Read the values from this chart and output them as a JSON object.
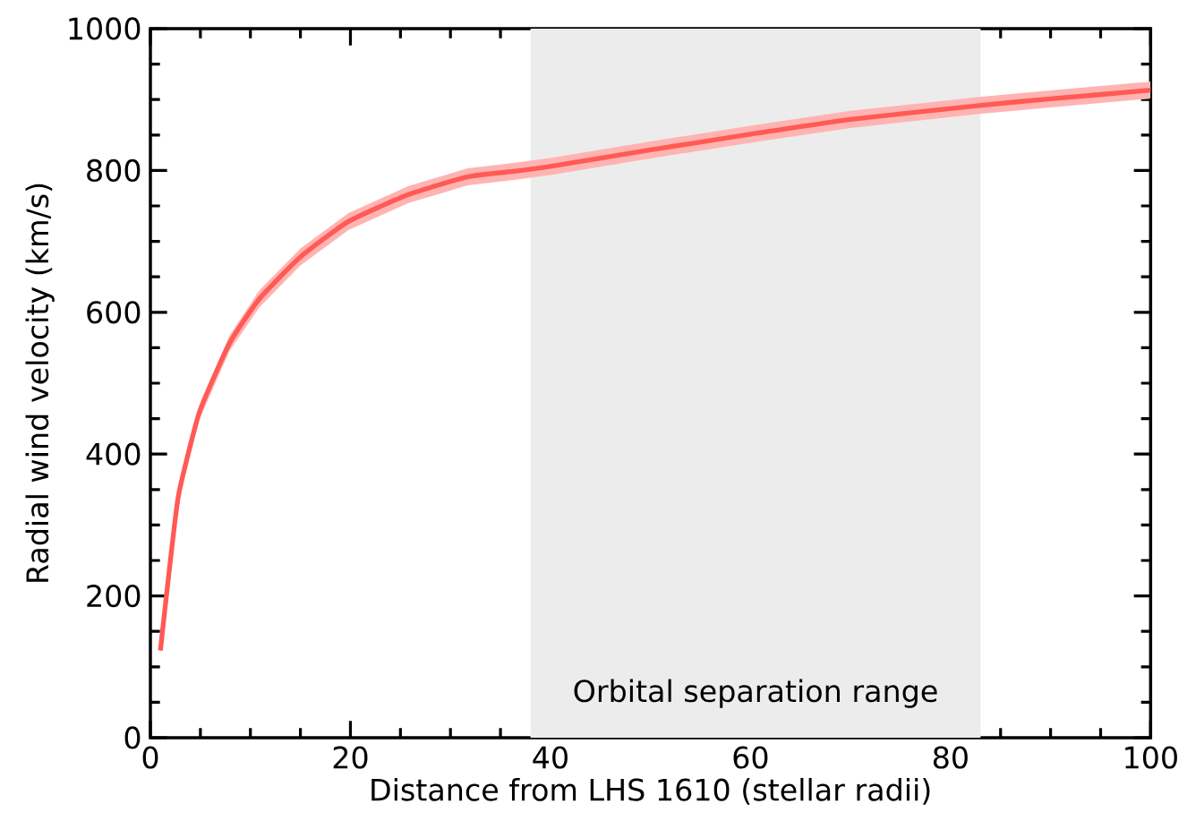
{
  "chart_data": {
    "type": "line",
    "xlabel": "Distance from LHS 1610 (stellar radii)",
    "ylabel": "Radial wind velocity (km/s)",
    "x": [
      1.0,
      1.6,
      2.8,
      4.9,
      7.9,
      10.9,
      15.0,
      19.8,
      25.8,
      31.7,
      36.5,
      40.1,
      50,
      60.4,
      70,
      83.1,
      90,
      99.8,
      100
    ],
    "series": [
      {
        "color": "#ff5a55",
        "values": [
          123,
          200,
          341,
          459,
          556,
          619,
          678,
          728,
          766,
          791,
          799,
          806,
          829,
          852,
          872,
          892,
          901,
          913,
          914
        ],
        "lower": [
          118,
          193,
          332,
          449,
          545,
          607,
          666,
          716,
          754,
          779,
          787,
          794,
          817,
          840,
          860,
          880,
          889,
          901,
          902
        ],
        "upper": [
          128,
          207,
          350,
          469,
          567,
          631,
          690,
          740,
          778,
          803,
          811,
          818,
          841,
          864,
          884,
          904,
          913,
          925,
          926
        ]
      }
    ],
    "xlim": [
      0,
      100
    ],
    "ylim": [
      0,
      1000
    ],
    "xticks": [
      0,
      20,
      40,
      60,
      80,
      100
    ],
    "yticks": [
      0,
      200,
      400,
      600,
      800,
      1000
    ],
    "bands": [
      {
        "axis": "x",
        "from": 38,
        "to": 83,
        "label": "Orbital separation range",
        "color": "#ececec"
      }
    ],
    "grid": false
  }
}
